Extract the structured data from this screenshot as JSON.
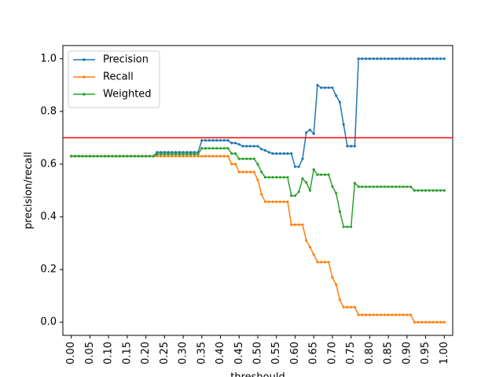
{
  "chart_data": {
    "type": "line",
    "title": "",
    "xlabel": "threshould",
    "ylabel": "precision/recall",
    "xlim": [
      -0.0225,
      1.0225
    ],
    "ylim": [
      -0.05,
      1.05
    ],
    "x_ticks": [
      "0.00",
      "0.05",
      "0.10",
      "0.15",
      "0.20",
      "0.25",
      "0.30",
      "0.35",
      "0.40",
      "0.45",
      "0.50",
      "0.55",
      "0.60",
      "0.65",
      "0.70",
      "0.75",
      "0.80",
      "0.85",
      "0.90",
      "0.95",
      "1.00"
    ],
    "y_ticks": [
      "0.0",
      "0.2",
      "0.4",
      "0.6",
      "0.8",
      "1.0"
    ],
    "grid": false,
    "legend": "upper-left",
    "reference_line": {
      "y": 0.7,
      "color": "#ff0000"
    },
    "series": [
      {
        "name": "Precision",
        "color": "#1f77b4",
        "x": [
          0.0,
          0.01,
          0.02,
          0.03,
          0.04,
          0.05,
          0.06,
          0.07,
          0.08,
          0.09,
          0.1,
          0.11,
          0.12,
          0.13,
          0.14,
          0.15,
          0.16,
          0.17,
          0.18,
          0.19,
          0.2,
          0.21,
          0.22,
          0.23,
          0.24,
          0.25,
          0.26,
          0.27,
          0.28,
          0.29,
          0.3,
          0.31,
          0.32,
          0.33,
          0.34,
          0.35,
          0.36,
          0.37,
          0.38,
          0.39,
          0.4,
          0.41,
          0.42,
          0.43,
          0.44,
          0.45,
          0.46,
          0.47,
          0.48,
          0.49,
          0.5,
          0.51,
          0.52,
          0.53,
          0.54,
          0.55,
          0.56,
          0.57,
          0.58,
          0.59,
          0.6,
          0.61,
          0.62,
          0.63,
          0.64,
          0.65,
          0.66,
          0.67,
          0.68,
          0.69,
          0.7,
          0.71,
          0.72,
          0.73,
          0.74,
          0.75,
          0.76,
          0.77,
          0.78,
          0.79,
          0.8,
          0.81,
          0.82,
          0.83,
          0.84,
          0.85,
          0.86,
          0.87,
          0.88,
          0.89,
          0.9,
          0.91,
          0.92,
          0.93,
          0.94,
          0.95,
          0.96,
          0.97,
          0.98,
          0.99,
          1.0
        ],
        "values": [
          0.63,
          0.63,
          0.63,
          0.63,
          0.63,
          0.63,
          0.63,
          0.63,
          0.63,
          0.63,
          0.63,
          0.63,
          0.63,
          0.63,
          0.63,
          0.63,
          0.63,
          0.63,
          0.63,
          0.63,
          0.63,
          0.63,
          0.63,
          0.645,
          0.645,
          0.645,
          0.645,
          0.645,
          0.645,
          0.645,
          0.645,
          0.645,
          0.645,
          0.645,
          0.645,
          0.69,
          0.69,
          0.69,
          0.69,
          0.69,
          0.69,
          0.69,
          0.69,
          0.68,
          0.68,
          0.675,
          0.668,
          0.668,
          0.668,
          0.668,
          0.668,
          0.657,
          0.652,
          0.645,
          0.64,
          0.64,
          0.64,
          0.64,
          0.64,
          0.64,
          0.59,
          0.59,
          0.62,
          0.72,
          0.73,
          0.715,
          0.9,
          0.89,
          0.89,
          0.89,
          0.89,
          0.86,
          0.835,
          0.75,
          0.668,
          0.668,
          0.668,
          1.0,
          1.0,
          1.0,
          1.0,
          1.0,
          1.0,
          1.0,
          1.0,
          1.0,
          1.0,
          1.0,
          1.0,
          1.0,
          1.0,
          1.0,
          1.0,
          1.0,
          1.0,
          1.0,
          1.0,
          1.0,
          1.0,
          1.0,
          1.0
        ]
      },
      {
        "name": "Recall",
        "color": "#ff7f0e",
        "x": [
          0.0,
          0.01,
          0.02,
          0.03,
          0.04,
          0.05,
          0.06,
          0.07,
          0.08,
          0.09,
          0.1,
          0.11,
          0.12,
          0.13,
          0.14,
          0.15,
          0.16,
          0.17,
          0.18,
          0.19,
          0.2,
          0.21,
          0.22,
          0.23,
          0.24,
          0.25,
          0.26,
          0.27,
          0.28,
          0.29,
          0.3,
          0.31,
          0.32,
          0.33,
          0.34,
          0.35,
          0.36,
          0.37,
          0.38,
          0.39,
          0.4,
          0.41,
          0.42,
          0.43,
          0.44,
          0.45,
          0.46,
          0.47,
          0.48,
          0.49,
          0.5,
          0.51,
          0.52,
          0.53,
          0.54,
          0.55,
          0.56,
          0.57,
          0.58,
          0.59,
          0.6,
          0.61,
          0.62,
          0.63,
          0.64,
          0.65,
          0.66,
          0.67,
          0.68,
          0.69,
          0.7,
          0.71,
          0.72,
          0.73,
          0.74,
          0.75,
          0.76,
          0.77,
          0.78,
          0.79,
          0.8,
          0.81,
          0.82,
          0.83,
          0.84,
          0.85,
          0.86,
          0.87,
          0.88,
          0.89,
          0.9,
          0.91,
          0.92,
          0.93,
          0.94,
          0.95,
          0.96,
          0.97,
          0.98,
          0.99,
          1.0
        ],
        "values": [
          0.63,
          0.63,
          0.63,
          0.63,
          0.63,
          0.63,
          0.63,
          0.63,
          0.63,
          0.63,
          0.63,
          0.63,
          0.63,
          0.63,
          0.63,
          0.63,
          0.63,
          0.63,
          0.63,
          0.63,
          0.63,
          0.63,
          0.63,
          0.63,
          0.63,
          0.63,
          0.63,
          0.63,
          0.63,
          0.63,
          0.63,
          0.63,
          0.63,
          0.63,
          0.63,
          0.63,
          0.63,
          0.63,
          0.63,
          0.63,
          0.63,
          0.63,
          0.63,
          0.6,
          0.6,
          0.57,
          0.57,
          0.57,
          0.57,
          0.57,
          0.54,
          0.485,
          0.457,
          0.457,
          0.457,
          0.457,
          0.457,
          0.457,
          0.457,
          0.37,
          0.37,
          0.37,
          0.37,
          0.31,
          0.285,
          0.257,
          0.228,
          0.228,
          0.228,
          0.228,
          0.17,
          0.143,
          0.085,
          0.057,
          0.057,
          0.057,
          0.057,
          0.028,
          0.028,
          0.028,
          0.028,
          0.028,
          0.028,
          0.028,
          0.028,
          0.028,
          0.028,
          0.028,
          0.028,
          0.028,
          0.028,
          0.028,
          0.0,
          0.0,
          0.0,
          0.0,
          0.0,
          0.0,
          0.0,
          0.0,
          0.0
        ]
      },
      {
        "name": "Weighted",
        "color": "#2ca02c",
        "x": [
          0.0,
          0.01,
          0.02,
          0.03,
          0.04,
          0.05,
          0.06,
          0.07,
          0.08,
          0.09,
          0.1,
          0.11,
          0.12,
          0.13,
          0.14,
          0.15,
          0.16,
          0.17,
          0.18,
          0.19,
          0.2,
          0.21,
          0.22,
          0.23,
          0.24,
          0.25,
          0.26,
          0.27,
          0.28,
          0.29,
          0.3,
          0.31,
          0.32,
          0.33,
          0.34,
          0.35,
          0.36,
          0.37,
          0.38,
          0.39,
          0.4,
          0.41,
          0.42,
          0.43,
          0.44,
          0.45,
          0.46,
          0.47,
          0.48,
          0.49,
          0.5,
          0.51,
          0.52,
          0.53,
          0.54,
          0.55,
          0.56,
          0.57,
          0.58,
          0.59,
          0.6,
          0.61,
          0.62,
          0.63,
          0.64,
          0.65,
          0.66,
          0.67,
          0.68,
          0.69,
          0.7,
          0.71,
          0.72,
          0.73,
          0.74,
          0.75,
          0.76,
          0.77,
          0.78,
          0.79,
          0.8,
          0.81,
          0.82,
          0.83,
          0.84,
          0.85,
          0.86,
          0.87,
          0.88,
          0.89,
          0.9,
          0.91,
          0.92,
          0.93,
          0.94,
          0.95,
          0.96,
          0.97,
          0.98,
          0.99,
          1.0
        ],
        "values": [
          0.63,
          0.63,
          0.63,
          0.63,
          0.63,
          0.63,
          0.63,
          0.63,
          0.63,
          0.63,
          0.63,
          0.63,
          0.63,
          0.63,
          0.63,
          0.63,
          0.63,
          0.63,
          0.63,
          0.63,
          0.63,
          0.63,
          0.63,
          0.638,
          0.638,
          0.638,
          0.638,
          0.638,
          0.638,
          0.638,
          0.638,
          0.638,
          0.638,
          0.638,
          0.638,
          0.66,
          0.66,
          0.66,
          0.66,
          0.66,
          0.66,
          0.66,
          0.66,
          0.64,
          0.64,
          0.62,
          0.62,
          0.62,
          0.62,
          0.62,
          0.6,
          0.57,
          0.55,
          0.55,
          0.55,
          0.55,
          0.55,
          0.55,
          0.55,
          0.48,
          0.48,
          0.495,
          0.545,
          0.53,
          0.5,
          0.58,
          0.56,
          0.56,
          0.56,
          0.56,
          0.515,
          0.49,
          0.42,
          0.362,
          0.362,
          0.362,
          0.528,
          0.514,
          0.514,
          0.514,
          0.514,
          0.514,
          0.514,
          0.514,
          0.514,
          0.514,
          0.514,
          0.514,
          0.514,
          0.514,
          0.514,
          0.514,
          0.5,
          0.5,
          0.5,
          0.5,
          0.5,
          0.5,
          0.5,
          0.5,
          0.5
        ]
      }
    ]
  }
}
